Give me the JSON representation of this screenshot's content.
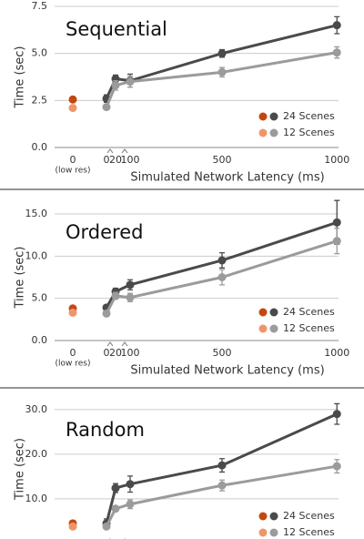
{
  "chart_data": [
    {
      "type": "line",
      "title": "Sequential",
      "y_label": "Time (sec)",
      "x_label": "Simulated Network Latency (ms)",
      "lowres_label": "0",
      "lowres_sublabel": "(low res)",
      "x": [
        0,
        20,
        100,
        500,
        1000
      ],
      "xticks": [
        0,
        20,
        100,
        500,
        1000
      ],
      "ylim": [
        0,
        7.5
      ],
      "yticks": [
        {
          "value": 0,
          "label": "0.0"
        },
        2.5,
        {
          "value": 5,
          "label": "5.0"
        },
        7.5
      ],
      "grid": true,
      "series": [
        {
          "name": "24 Scenes",
          "color": "#4a4a4a",
          "lowres_color": "#c4470f",
          "lowres_value": 2.55,
          "values": [
            2.6,
            3.65,
            3.55,
            5.0,
            6.5
          ],
          "errors": [
            0.2,
            0.2,
            0.35,
            0.2,
            0.45
          ]
        },
        {
          "name": "12 Scenes",
          "color": "#9b9b9b",
          "lowres_color": "#f0956a",
          "lowres_value": 2.1,
          "values": [
            2.15,
            3.3,
            3.5,
            4.0,
            5.05
          ],
          "errors": [
            0.1,
            0.25,
            0.3,
            0.25,
            0.3
          ]
        }
      ]
    },
    {
      "type": "line",
      "title": "Ordered",
      "y_label": "Time (sec)",
      "x_label": "Simulated Network Latency (ms)",
      "lowres_label": "0",
      "lowres_sublabel": "(low res)",
      "x": [
        0,
        20,
        100,
        500,
        1000
      ],
      "xticks": [
        0,
        20,
        100,
        500,
        1000
      ],
      "ylim": [
        0,
        15
      ],
      "yticks": [
        {
          "value": 0,
          "label": "0.0"
        },
        {
          "value": 5,
          "label": "5.0"
        },
        {
          "value": 10,
          "label": "10.0"
        },
        {
          "value": 15,
          "label": "15.0"
        }
      ],
      "grid": true,
      "series": [
        {
          "name": "24 Scenes",
          "color": "#4a4a4a",
          "lowres_color": "#c4470f",
          "lowres_value": 3.8,
          "values": [
            3.9,
            5.8,
            6.6,
            9.5,
            14.0
          ],
          "errors": [
            0.3,
            0.4,
            0.6,
            0.9,
            2.6
          ]
        },
        {
          "name": "12 Scenes",
          "color": "#9b9b9b",
          "lowres_color": "#f0956a",
          "lowres_value": 3.3,
          "values": [
            3.2,
            5.3,
            5.1,
            7.5,
            11.8
          ],
          "errors": [
            0.3,
            0.4,
            0.5,
            0.9,
            1.5
          ]
        }
      ]
    },
    {
      "type": "line",
      "title": "Random",
      "y_label": "Time (sec)",
      "x": [
        0,
        20,
        100,
        500,
        1000
      ],
      "ylim": [
        1,
        32
      ],
      "yticks": [
        {
          "value": 10,
          "label": "10.0"
        },
        {
          "value": 20,
          "label": "20.0"
        },
        {
          "value": 30,
          "label": "30.0"
        }
      ],
      "grid": true,
      "series": [
        {
          "name": "24 Scenes",
          "color": "#4a4a4a",
          "lowres_color": "#c4470f",
          "lowres_value": 4.5,
          "values": [
            4.5,
            12.4,
            13.3,
            17.5,
            29.0
          ],
          "errors": [
            1.0,
            1.0,
            1.8,
            1.5,
            2.3
          ]
        },
        {
          "name": "12 Scenes",
          "color": "#9b9b9b",
          "lowres_color": "#f0956a",
          "lowres_value": 3.8,
          "values": [
            3.8,
            7.8,
            8.8,
            13.0,
            17.3
          ],
          "errors": [
            0.5,
            0.5,
            1.0,
            1.2,
            1.5
          ]
        }
      ]
    }
  ]
}
